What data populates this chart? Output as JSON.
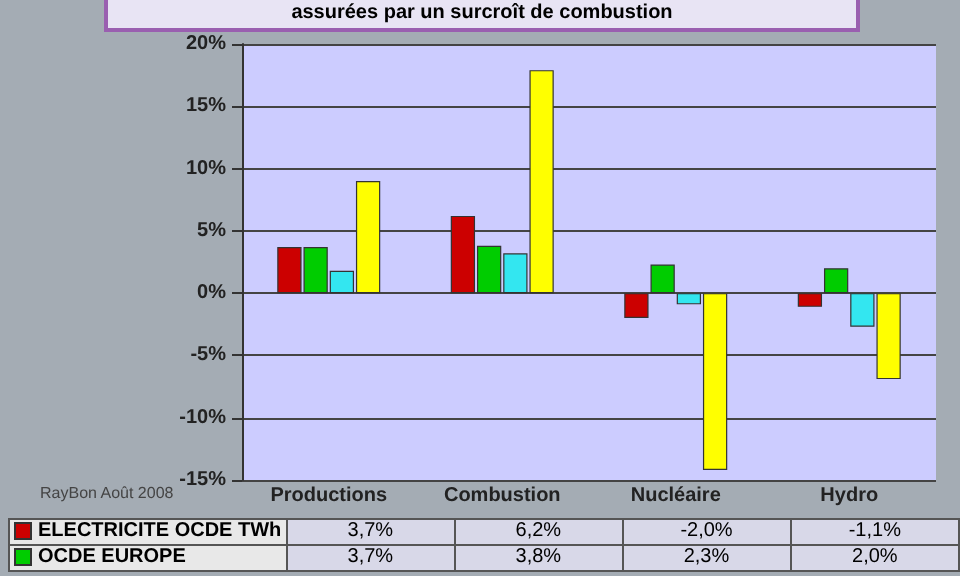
{
  "chart_data": {
    "type": "bar",
    "title": "assurées par un surcroît de combustion",
    "categories": [
      "Productions",
      "Combustion",
      "Nucléaire",
      "Hydro"
    ],
    "series": [
      {
        "name": "ELECTRICITE OCDE TWh",
        "color": "#cc0000",
        "values": [
          3.7,
          6.2,
          -2.0,
          -1.1
        ],
        "value_labels": [
          "3,7%",
          "6,2%",
          "-2,0%",
          "-1,1%"
        ]
      },
      {
        "name": "OCDE EUROPE",
        "color": "#00cc00",
        "values": [
          3.7,
          3.8,
          2.3,
          2.0
        ],
        "value_labels": [
          "3,7%",
          "3,8%",
          "2,3%",
          "2,0%"
        ]
      },
      {
        "color": "#33e6f0",
        "values": [
          1.8,
          3.2,
          -0.9,
          -2.7
        ]
      },
      {
        "color": "#ffff00",
        "values": [
          9.0,
          17.9,
          -14.2,
          -6.9
        ]
      }
    ],
    "ylim": [
      -15,
      20
    ],
    "yticks": [
      {
        "value": -15,
        "label": "-15%"
      },
      {
        "value": -10,
        "label": "-10%"
      },
      {
        "value": -5,
        "label": "-5%"
      },
      {
        "value": 0,
        "label": "0%"
      },
      {
        "value": 5,
        "label": "5%"
      },
      {
        "value": 10,
        "label": "10%"
      },
      {
        "value": 15,
        "label": "15%"
      },
      {
        "value": 20,
        "label": "20%"
      }
    ],
    "grid": "y",
    "legend": "bottom",
    "annotations": [
      "RayBon Août 2008"
    ]
  }
}
